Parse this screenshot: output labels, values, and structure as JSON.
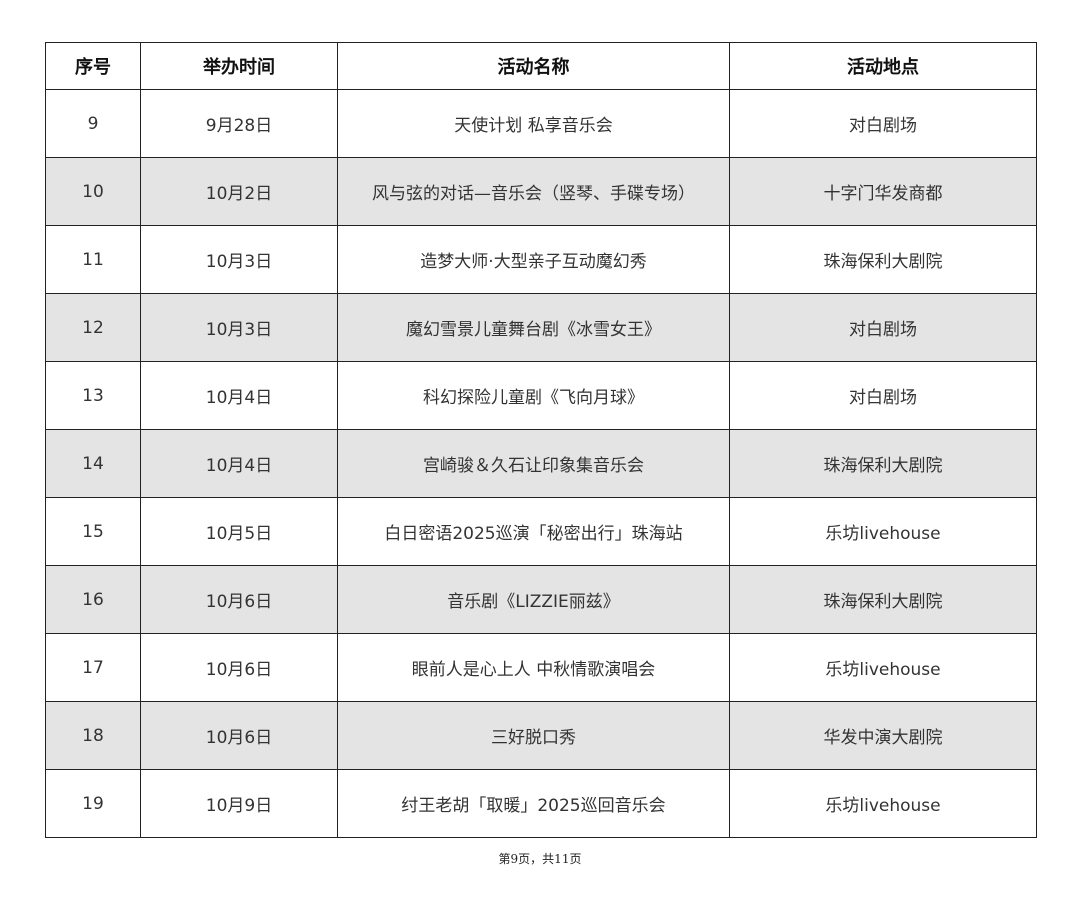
{
  "table": {
    "headers": [
      "序号",
      "举办时间",
      "活动名称",
      "活动地点"
    ],
    "rows": [
      [
        "9",
        "9月28日",
        "天使计划 私享音乐会",
        "对白剧场"
      ],
      [
        "10",
        "10月2日",
        "风与弦的对话—音乐会（竖琴、手碟专场）",
        "十字门华发商都"
      ],
      [
        "11",
        "10月3日",
        "造梦大师·大型亲子互动魔幻秀",
        "珠海保利大剧院"
      ],
      [
        "12",
        "10月3日",
        "魔幻雪景儿童舞台剧《冰雪女王》",
        "对白剧场"
      ],
      [
        "13",
        "10月4日",
        "科幻探险儿童剧《飞向月球》",
        "对白剧场"
      ],
      [
        "14",
        "10月4日",
        "宫崎骏＆久石让印象集音乐会",
        "珠海保利大剧院"
      ],
      [
        "15",
        "10月5日",
        "白日密语2025巡演「秘密出行」珠海站",
        "乐坊livehouse"
      ],
      [
        "16",
        "10月6日",
        "音乐剧《LIZZIE丽兹》",
        "珠海保利大剧院"
      ],
      [
        "17",
        "10月6日",
        "眼前人是心上人 中秋情歌演唱会",
        "乐坊livehouse"
      ],
      [
        "18",
        "10月6日",
        "三好脱口秀",
        "华发中演大剧院"
      ],
      [
        "19",
        "10月9日",
        "纣王老胡「取暖」2025巡回音乐会",
        "乐坊livehouse"
      ]
    ]
  },
  "footer": "第9页，共11页",
  "colors": {
    "stripe": "#e4e4e4",
    "border": "#222222"
  }
}
